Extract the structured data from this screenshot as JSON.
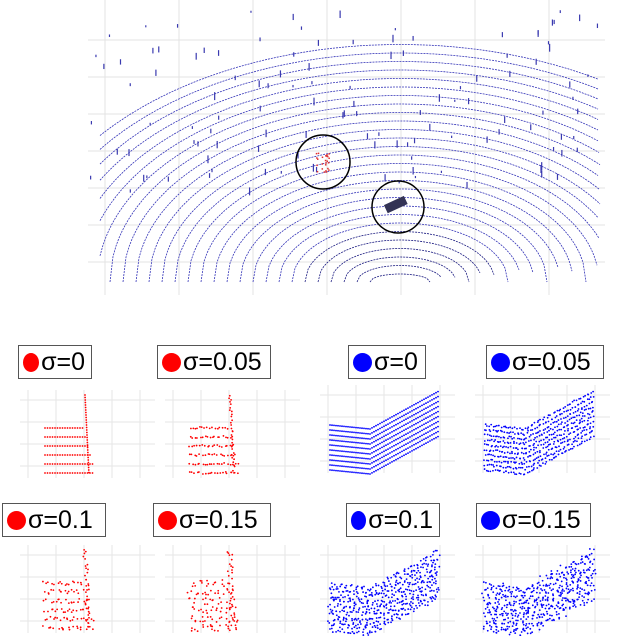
{
  "panels": [
    {
      "label": "σ=0",
      "color": "#ff0000"
    },
    {
      "label": "σ=0.05",
      "color": "#ff0000"
    },
    {
      "label": "σ=0",
      "color": "#0000ff"
    },
    {
      "label": "σ=0.05",
      "color": "#0000ff"
    },
    {
      "label": "σ=0.1",
      "color": "#ff0000"
    },
    {
      "label": "σ=0.15",
      "color": "#ff0000"
    },
    {
      "label": "σ=0.1",
      "color": "#0000ff"
    },
    {
      "label": "σ=0.15",
      "color": "#0000ff"
    }
  ]
}
